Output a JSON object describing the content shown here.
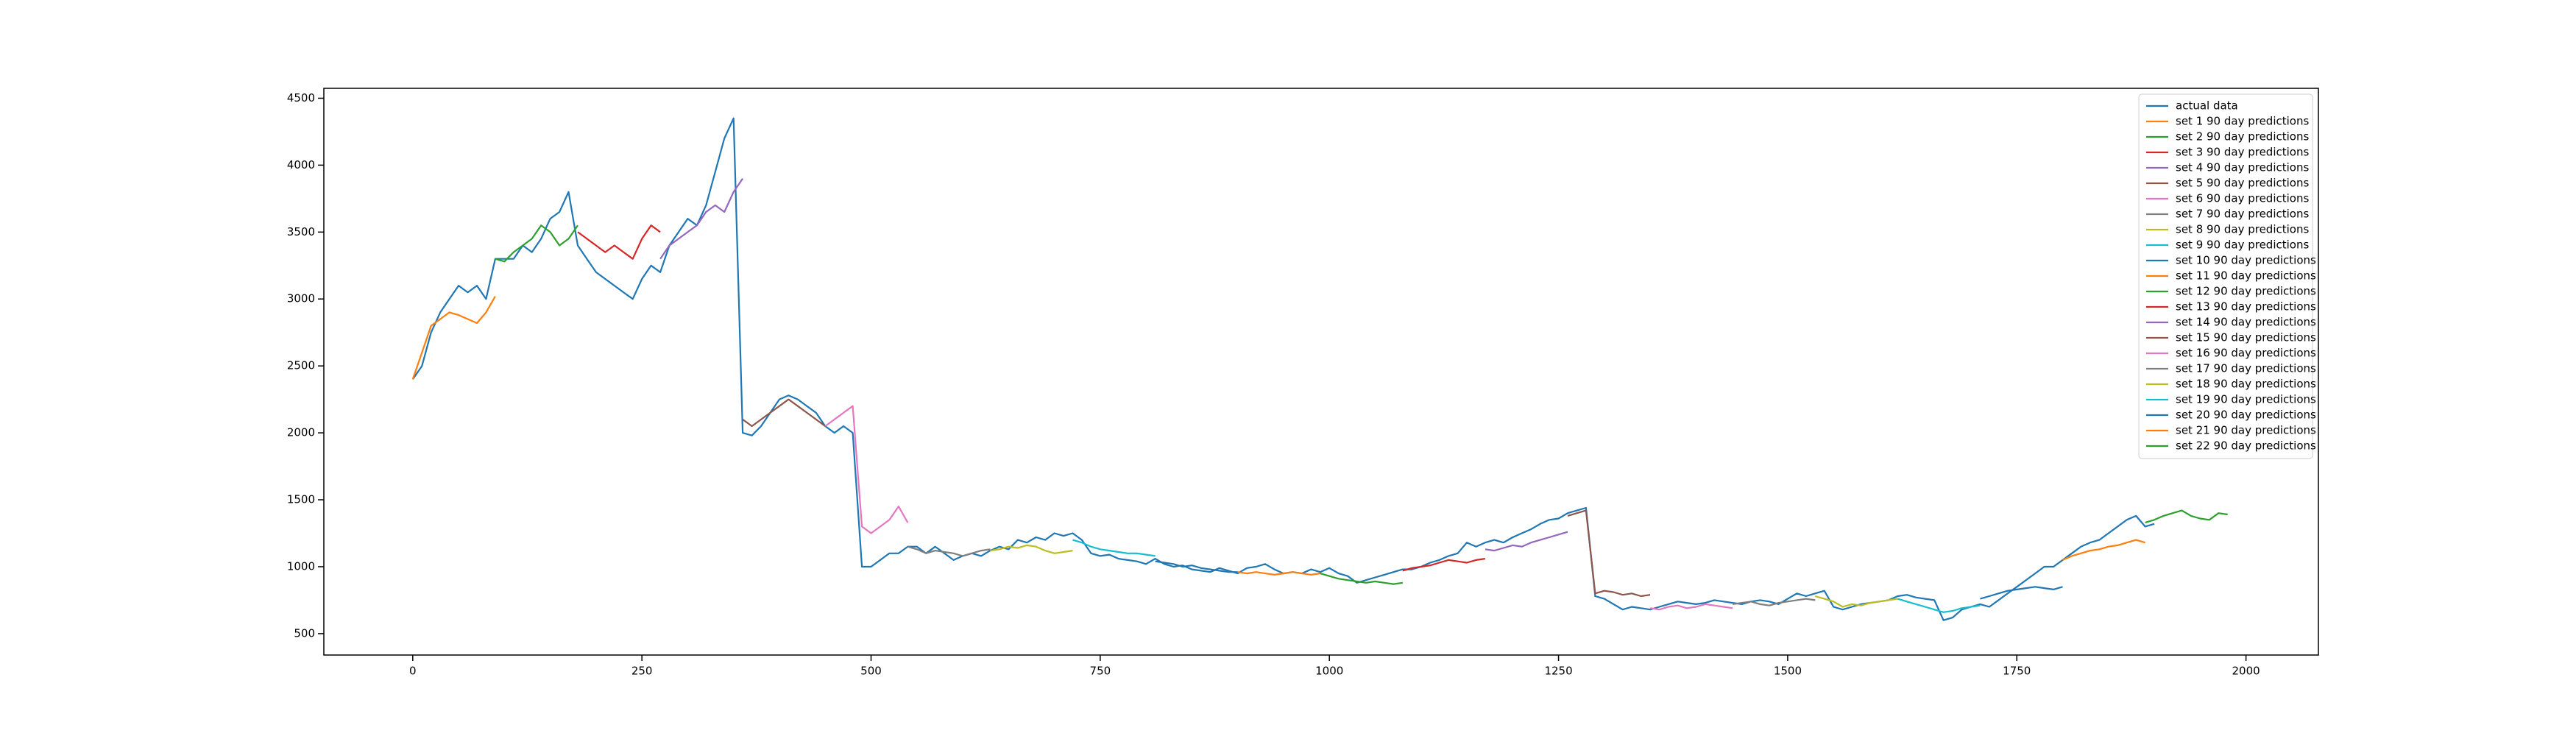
{
  "chart_data": {
    "type": "line",
    "xlim": [
      -97,
      2079
    ],
    "ylim": [
      340,
      4574
    ],
    "xticks": [
      0,
      250,
      500,
      750,
      1000,
      1250,
      1500,
      1750,
      2000
    ],
    "yticks": [
      500,
      1000,
      1500,
      2000,
      2500,
      3000,
      3500,
      4000,
      4500
    ],
    "legend": "upper right",
    "series": [
      {
        "name": "actual data",
        "color": "#1f77b4",
        "x": [
          0,
          10,
          20,
          30,
          40,
          50,
          60,
          70,
          80,
          90,
          100,
          110,
          120,
          130,
          140,
          150,
          160,
          170,
          180,
          190,
          200,
          210,
          220,
          230,
          240,
          250,
          260,
          270,
          280,
          290,
          300,
          310,
          320,
          330,
          340,
          350,
          360,
          370,
          380,
          390,
          400,
          410,
          420,
          430,
          440,
          450,
          460,
          470,
          480,
          490,
          500,
          510,
          520,
          530,
          540,
          550,
          560,
          570,
          580,
          590,
          600,
          610,
          620,
          630,
          640,
          650,
          660,
          670,
          680,
          690,
          700,
          710,
          720,
          730,
          740,
          750,
          760,
          770,
          780,
          790,
          800,
          810,
          820,
          830,
          840,
          850,
          860,
          870,
          880,
          890,
          900,
          910,
          920,
          930,
          940,
          950,
          960,
          970,
          980,
          990,
          1000,
          1010,
          1020,
          1030,
          1040,
          1050,
          1060,
          1070,
          1080,
          1090,
          1100,
          1110,
          1120,
          1130,
          1140,
          1150,
          1160,
          1170,
          1180,
          1190,
          1200,
          1210,
          1220,
          1230,
          1240,
          1250,
          1260,
          1270,
          1280,
          1290,
          1300,
          1310,
          1320,
          1330,
          1340,
          1350,
          1360,
          1370,
          1380,
          1390,
          1400,
          1410,
          1420,
          1430,
          1440,
          1450,
          1460,
          1470,
          1480,
          1490,
          1500,
          1510,
          1520,
          1530,
          1540,
          1550,
          1560,
          1570,
          1580,
          1590,
          1600,
          1610,
          1620,
          1630,
          1640,
          1650,
          1660,
          1670,
          1680,
          1690,
          1700,
          1710,
          1720,
          1730,
          1740,
          1750,
          1760,
          1770,
          1780,
          1790,
          1800,
          1810,
          1820,
          1830,
          1840,
          1850,
          1860,
          1870,
          1880,
          1890,
          1900
        ],
        "values": [
          2400,
          2500,
          2750,
          2900,
          3000,
          3100,
          3050,
          3100,
          3000,
          3300,
          3300,
          3300,
          3400,
          3350,
          3450,
          3600,
          3650,
          3800,
          3400,
          3300,
          3200,
          3150,
          3100,
          3050,
          3000,
          3150,
          3250,
          3200,
          3400,
          3500,
          3600,
          3550,
          3700,
          3950,
          4200,
          4350,
          2000,
          1980,
          2050,
          2150,
          2250,
          2280,
          2250,
          2200,
          2150,
          2050,
          2000,
          2050,
          2000,
          1000,
          1000,
          1050,
          1100,
          1100,
          1150,
          1150,
          1100,
          1150,
          1100,
          1050,
          1080,
          1100,
          1080,
          1120,
          1150,
          1130,
          1200,
          1180,
          1220,
          1200,
          1250,
          1230,
          1250,
          1200,
          1100,
          1080,
          1090,
          1060,
          1050,
          1040,
          1020,
          1060,
          1020,
          1000,
          1010,
          980,
          970,
          960,
          990,
          970,
          950,
          990,
          1000,
          1020,
          980,
          950,
          960,
          950,
          980,
          960,
          990,
          950,
          930,
          880,
          900,
          920,
          940,
          960,
          980,
          980,
          1000,
          1030,
          1050,
          1080,
          1100,
          1180,
          1150,
          1180,
          1200,
          1180,
          1220,
          1250,
          1280,
          1320,
          1350,
          1360,
          1400,
          1420,
          1440,
          780,
          760,
          720,
          680,
          700,
          690,
          680,
          700,
          720,
          740,
          730,
          720,
          730,
          750,
          740,
          730,
          720,
          740,
          750,
          740,
          720,
          760,
          800,
          780,
          800,
          820,
          700,
          680,
          700,
          720,
          730,
          740,
          750,
          780,
          790,
          770,
          760,
          750,
          600,
          620,
          680,
          700,
          720,
          700,
          750,
          800,
          850,
          900,
          950,
          1000,
          1000,
          1050,
          1100,
          1150,
          1180,
          1200,
          1250,
          1300,
          1350,
          1380,
          1300,
          1320
        ]
      },
      {
        "name": "set 1 90 day predictions",
        "color": "#ff7f0e",
        "x": [
          0,
          10,
          20,
          30,
          40,
          50,
          60,
          70,
          80,
          90
        ],
        "values": [
          2400,
          2600,
          2800,
          2850,
          2900,
          2880,
          2850,
          2820,
          2900,
          3020
        ]
      },
      {
        "name": "set 2 90 day predictions",
        "color": "#2ca02c",
        "x": [
          90,
          100,
          110,
          120,
          130,
          140,
          150,
          160,
          170,
          180
        ],
        "values": [
          3300,
          3280,
          3350,
          3400,
          3450,
          3550,
          3500,
          3400,
          3450,
          3550
        ]
      },
      {
        "name": "set 3 90 day predictions",
        "color": "#d62728",
        "x": [
          180,
          190,
          200,
          210,
          220,
          230,
          240,
          250,
          260,
          270
        ],
        "values": [
          3500,
          3450,
          3400,
          3350,
          3400,
          3350,
          3300,
          3450,
          3550,
          3500
        ]
      },
      {
        "name": "set 4 90 day predictions",
        "color": "#9467bd",
        "x": [
          270,
          280,
          290,
          300,
          310,
          320,
          330,
          340,
          350,
          360
        ],
        "values": [
          3300,
          3400,
          3450,
          3500,
          3550,
          3650,
          3700,
          3650,
          3800,
          3900
        ]
      },
      {
        "name": "set 5 90 day predictions",
        "color": "#8c564b",
        "x": [
          360,
          370,
          380,
          390,
          400,
          410,
          420,
          430,
          440,
          450
        ],
        "values": [
          2100,
          2050,
          2100,
          2150,
          2200,
          2250,
          2200,
          2150,
          2100,
          2050
        ]
      },
      {
        "name": "set 6 90 day predictions",
        "color": "#e377c2",
        "x": [
          450,
          460,
          470,
          480,
          490,
          500,
          510,
          520,
          530,
          540
        ],
        "values": [
          2050,
          2100,
          2150,
          2200,
          1300,
          1250,
          1300,
          1350,
          1450,
          1330
        ]
      },
      {
        "name": "set 7 90 day predictions",
        "color": "#7f7f7f",
        "x": [
          540,
          550,
          560,
          570,
          580,
          590,
          600,
          610,
          620,
          630
        ],
        "values": [
          1150,
          1130,
          1100,
          1120,
          1110,
          1100,
          1080,
          1100,
          1120,
          1130
        ]
      },
      {
        "name": "set 8 90 day predictions",
        "color": "#bcbd22",
        "x": [
          630,
          640,
          650,
          660,
          670,
          680,
          690,
          700,
          710,
          720
        ],
        "values": [
          1120,
          1130,
          1150,
          1140,
          1160,
          1150,
          1120,
          1100,
          1110,
          1120
        ]
      },
      {
        "name": "set 9 90 day predictions",
        "color": "#17becf",
        "x": [
          720,
          730,
          740,
          750,
          760,
          770,
          780,
          790,
          800,
          810
        ],
        "values": [
          1200,
          1180,
          1150,
          1130,
          1120,
          1110,
          1100,
          1100,
          1090,
          1080
        ]
      },
      {
        "name": "set 10 90 day predictions",
        "color": "#1f77b4",
        "x": [
          810,
          820,
          830,
          840,
          850,
          860,
          870,
          880,
          890,
          900
        ],
        "values": [
          1040,
          1030,
          1020,
          1000,
          1010,
          990,
          980,
          970,
          960,
          960
        ]
      },
      {
        "name": "set 11 90 day predictions",
        "color": "#ff7f0e",
        "x": [
          900,
          910,
          920,
          930,
          940,
          950,
          960,
          970,
          980,
          990
        ],
        "values": [
          960,
          950,
          960,
          950,
          940,
          950,
          960,
          950,
          940,
          950
        ]
      },
      {
        "name": "set 12 90 day predictions",
        "color": "#2ca02c",
        "x": [
          990,
          1000,
          1010,
          1020,
          1030,
          1040,
          1050,
          1060,
          1070,
          1080
        ],
        "values": [
          950,
          930,
          910,
          900,
          890,
          880,
          890,
          880,
          870,
          880
        ]
      },
      {
        "name": "set 13 90 day predictions",
        "color": "#d62728",
        "x": [
          1080,
          1090,
          1100,
          1110,
          1120,
          1130,
          1140,
          1150,
          1160,
          1170
        ],
        "values": [
          970,
          990,
          1000,
          1010,
          1030,
          1050,
          1040,
          1030,
          1050,
          1060
        ]
      },
      {
        "name": "set 14 90 day predictions",
        "color": "#9467bd",
        "x": [
          1170,
          1180,
          1190,
          1200,
          1210,
          1220,
          1230,
          1240,
          1250,
          1260
        ],
        "values": [
          1130,
          1120,
          1140,
          1160,
          1150,
          1180,
          1200,
          1220,
          1240,
          1260
        ]
      },
      {
        "name": "set 15 90 day predictions",
        "color": "#8c564b",
        "x": [
          1260,
          1270,
          1280,
          1290,
          1300,
          1310,
          1320,
          1330,
          1340,
          1350
        ],
        "values": [
          1380,
          1400,
          1420,
          800,
          820,
          810,
          790,
          800,
          780,
          790
        ]
      },
      {
        "name": "set 16 90 day predictions",
        "color": "#e377c2",
        "x": [
          1350,
          1360,
          1370,
          1380,
          1390,
          1400,
          1410,
          1420,
          1430,
          1440
        ],
        "values": [
          690,
          680,
          700,
          710,
          690,
          700,
          720,
          710,
          700,
          690
        ]
      },
      {
        "name": "set 17 90 day predictions",
        "color": "#7f7f7f",
        "x": [
          1440,
          1450,
          1460,
          1470,
          1480,
          1490,
          1500,
          1510,
          1520,
          1530
        ],
        "values": [
          720,
          730,
          740,
          720,
          710,
          730,
          740,
          750,
          760,
          750
        ]
      },
      {
        "name": "set 18 90 day predictions",
        "color": "#bcbd22",
        "x": [
          1530,
          1540,
          1550,
          1560,
          1570,
          1580,
          1590,
          1600,
          1610,
          1620
        ],
        "values": [
          780,
          760,
          740,
          700,
          720,
          710,
          730,
          740,
          750,
          760
        ]
      },
      {
        "name": "set 19 90 day predictions",
        "color": "#17becf",
        "x": [
          1620,
          1630,
          1640,
          1650,
          1660,
          1670,
          1680,
          1690,
          1700,
          1710
        ],
        "values": [
          760,
          740,
          720,
          700,
          680,
          660,
          670,
          690,
          700,
          710
        ]
      },
      {
        "name": "set 20 90 day predictions",
        "color": "#1f77b4",
        "x": [
          1710,
          1720,
          1730,
          1740,
          1750,
          1760,
          1770,
          1780,
          1790,
          1800
        ],
        "values": [
          760,
          780,
          800,
          820,
          830,
          840,
          850,
          840,
          830,
          850
        ]
      },
      {
        "name": "set 21 90 day predictions",
        "color": "#ff7f0e",
        "x": [
          1800,
          1810,
          1820,
          1830,
          1840,
          1850,
          1860,
          1870,
          1880,
          1890
        ],
        "values": [
          1050,
          1080,
          1100,
          1120,
          1130,
          1150,
          1160,
          1180,
          1200,
          1180
        ]
      },
      {
        "name": "set 22 90 day predictions",
        "color": "#2ca02c",
        "x": [
          1890,
          1900,
          1910,
          1920,
          1930,
          1940,
          1950,
          1960,
          1970,
          1980
        ],
        "values": [
          1330,
          1350,
          1380,
          1400,
          1420,
          1380,
          1360,
          1350,
          1400,
          1390
        ]
      }
    ]
  }
}
